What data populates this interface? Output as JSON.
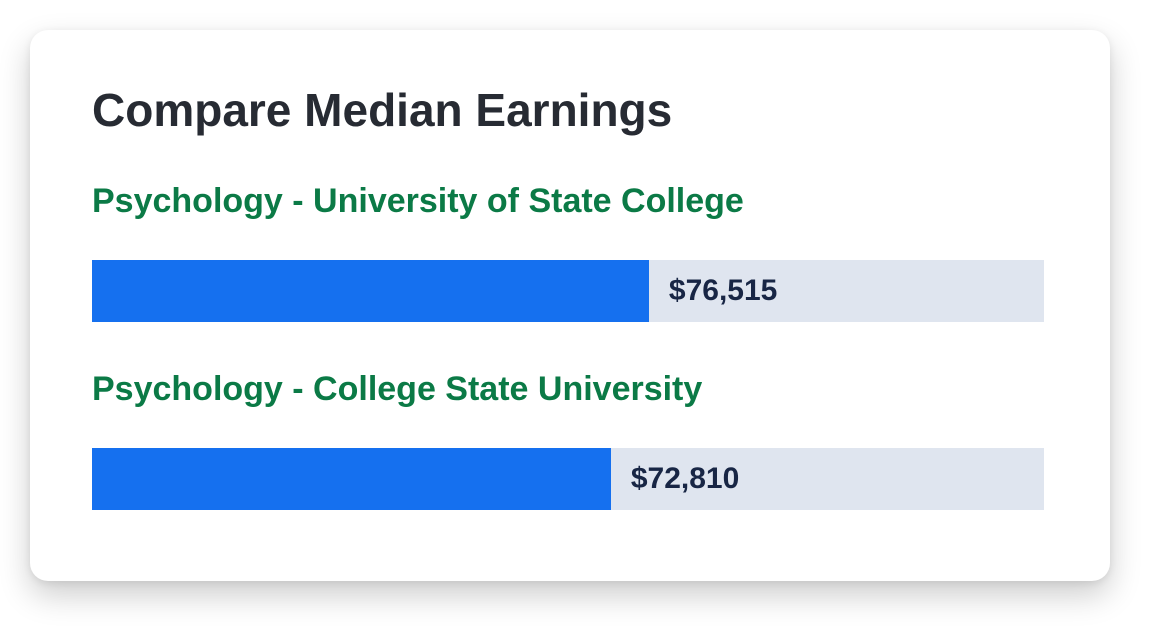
{
  "card": {
    "title": "Compare Median Earnings"
  },
  "rows": [
    {
      "label": "Psychology - University of State College",
      "value_text": "$76,515",
      "fill_fraction": 0.585
    },
    {
      "label": "Psychology - College State University",
      "value_text": "$72,810",
      "fill_fraction": 0.545
    }
  ],
  "colors": {
    "bar_fill": "#1570ef",
    "bar_track": "#dfe5ef",
    "label_green": "#0b7a46",
    "title_dark": "#272b33",
    "value_navy": "#182645"
  }
}
